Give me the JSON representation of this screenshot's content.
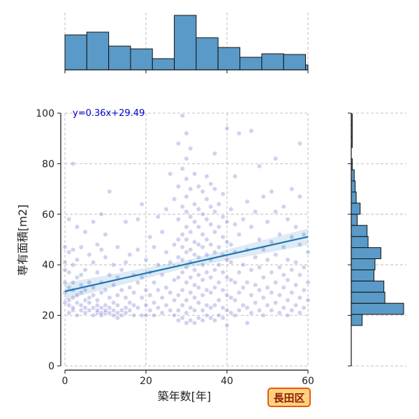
{
  "chart_data": {
    "type": "scatter",
    "xlabel": "築年数[年]",
    "ylabel": "専有面積[m2]",
    "xlim": [
      0,
      60
    ],
    "ylim": [
      0,
      100
    ],
    "xticks": [
      0,
      20,
      40,
      60
    ],
    "yticks": [
      0,
      20,
      40,
      60,
      80,
      100
    ],
    "grid": true,
    "regression": {
      "label": "y=0.36x+29.49",
      "slope": 0.36,
      "intercept": 29.49
    },
    "badge": "長田区",
    "x_histogram": {
      "bin_edges": [
        0,
        5.4,
        10.8,
        16.2,
        21.6,
        27,
        32.4,
        37.8,
        43.2,
        48.6,
        54,
        59.4,
        60
      ],
      "counts": [
        50,
        54,
        34,
        30,
        16,
        78,
        46,
        32,
        18,
        23,
        22,
        7
      ]
    },
    "y_histogram": {
      "bin_edges": [
        16,
        20.4,
        24.8,
        29.2,
        33.6,
        38,
        42.4,
        46.8,
        51.2,
        55.6,
        60,
        64.4,
        68.8,
        73.2,
        77.6,
        82,
        86.4,
        90.8,
        95.2,
        99.6
      ],
      "counts": [
        11,
        53,
        34,
        33,
        23,
        24,
        30,
        17,
        16,
        6,
        9,
        5,
        4,
        3,
        1,
        0,
        1,
        1,
        1
      ]
    },
    "points": [
      [
        0,
        25
      ],
      [
        0,
        29
      ],
      [
        0,
        33
      ],
      [
        0,
        38
      ],
      [
        0,
        41
      ],
      [
        0,
        47
      ],
      [
        1,
        21
      ],
      [
        1,
        24
      ],
      [
        1,
        26
      ],
      [
        1,
        31
      ],
      [
        1,
        37
      ],
      [
        1,
        45
      ],
      [
        1,
        58
      ],
      [
        2,
        22
      ],
      [
        2,
        23
      ],
      [
        2,
        27
      ],
      [
        2,
        30
      ],
      [
        2,
        33
      ],
      [
        2,
        40
      ],
      [
        2,
        46
      ],
      [
        2,
        80
      ],
      [
        3,
        20
      ],
      [
        3,
        25
      ],
      [
        3,
        28
      ],
      [
        3,
        35
      ],
      [
        3,
        42
      ],
      [
        3,
        55
      ],
      [
        4,
        22
      ],
      [
        4,
        24
      ],
      [
        4,
        29
      ],
      [
        4,
        32
      ],
      [
        4,
        36
      ],
      [
        4,
        47
      ],
      [
        5,
        21
      ],
      [
        5,
        23
      ],
      [
        5,
        26
      ],
      [
        5,
        30
      ],
      [
        5,
        38
      ],
      [
        5,
        53
      ],
      [
        6,
        22
      ],
      [
        6,
        25
      ],
      [
        6,
        27
      ],
      [
        6,
        33
      ],
      [
        6,
        44
      ],
      [
        7,
        20
      ],
      [
        7,
        23
      ],
      [
        7,
        28
      ],
      [
        7,
        31
      ],
      [
        7,
        41
      ],
      [
        7,
        57
      ],
      [
        8,
        21
      ],
      [
        8,
        22
      ],
      [
        8,
        24
      ],
      [
        8,
        26
      ],
      [
        8,
        37
      ],
      [
        8,
        48
      ],
      [
        9,
        20
      ],
      [
        9,
        21
      ],
      [
        9,
        23
      ],
      [
        9,
        29
      ],
      [
        9,
        33
      ],
      [
        9,
        46
      ],
      [
        9,
        60
      ],
      [
        10,
        21
      ],
      [
        10,
        22
      ],
      [
        10,
        24
      ],
      [
        10,
        30
      ],
      [
        10,
        43
      ],
      [
        10,
        52
      ],
      [
        11,
        21
      ],
      [
        11,
        23
      ],
      [
        11,
        27
      ],
      [
        11,
        36
      ],
      [
        11,
        69
      ],
      [
        12,
        20
      ],
      [
        12,
        22
      ],
      [
        12,
        25
      ],
      [
        12,
        32
      ],
      [
        12,
        40
      ],
      [
        13,
        19
      ],
      [
        13,
        21
      ],
      [
        13,
        24
      ],
      [
        13,
        28
      ],
      [
        13,
        35
      ],
      [
        13,
        47
      ],
      [
        14,
        20
      ],
      [
        14,
        22
      ],
      [
        14,
        30
      ],
      [
        14,
        38
      ],
      [
        15,
        21
      ],
      [
        15,
        23
      ],
      [
        15,
        27
      ],
      [
        15,
        41
      ],
      [
        15,
        57
      ],
      [
        16,
        22
      ],
      [
        16,
        25
      ],
      [
        16,
        31
      ],
      [
        16,
        44
      ],
      [
        17,
        20
      ],
      [
        17,
        24
      ],
      [
        17,
        29
      ],
      [
        17,
        36
      ],
      [
        18,
        23
      ],
      [
        18,
        33
      ],
      [
        18,
        46
      ],
      [
        18,
        58
      ],
      [
        19,
        20
      ],
      [
        19,
        27
      ],
      [
        19,
        35
      ],
      [
        19,
        64
      ],
      [
        20,
        20
      ],
      [
        20,
        24
      ],
      [
        20,
        30
      ],
      [
        20,
        42
      ],
      [
        21,
        22
      ],
      [
        21,
        28
      ],
      [
        21,
        37
      ],
      [
        21,
        51
      ],
      [
        22,
        20
      ],
      [
        22,
        25
      ],
      [
        22,
        33
      ],
      [
        22,
        47
      ],
      [
        23,
        23
      ],
      [
        23,
        30
      ],
      [
        23,
        40
      ],
      [
        23,
        59
      ],
      [
        24,
        21
      ],
      [
        24,
        27
      ],
      [
        24,
        36
      ],
      [
        24,
        53
      ],
      [
        25,
        24
      ],
      [
        25,
        31
      ],
      [
        25,
        45
      ],
      [
        25,
        62
      ],
      [
        26,
        22
      ],
      [
        26,
        29
      ],
      [
        26,
        41
      ],
      [
        26,
        76
      ],
      [
        27,
        20
      ],
      [
        27,
        26
      ],
      [
        27,
        34
      ],
      [
        27,
        48
      ],
      [
        27,
        66
      ],
      [
        28,
        18
      ],
      [
        28,
        22
      ],
      [
        28,
        28
      ],
      [
        28,
        35
      ],
      [
        28,
        43
      ],
      [
        28,
        50
      ],
      [
        28,
        58
      ],
      [
        28,
        71
      ],
      [
        28,
        88
      ],
      [
        29,
        19
      ],
      [
        29,
        24
      ],
      [
        29,
        30
      ],
      [
        29,
        37
      ],
      [
        29,
        42
      ],
      [
        29,
        47
      ],
      [
        29,
        52
      ],
      [
        29,
        63
      ],
      [
        29,
        78
      ],
      [
        29,
        99
      ],
      [
        30,
        17
      ],
      [
        30,
        21
      ],
      [
        30,
        26
      ],
      [
        30,
        33
      ],
      [
        30,
        39
      ],
      [
        30,
        45
      ],
      [
        30,
        50
      ],
      [
        30,
        55
      ],
      [
        30,
        61
      ],
      [
        30,
        67
      ],
      [
        30,
        74
      ],
      [
        30,
        82
      ],
      [
        30,
        92
      ],
      [
        31,
        18
      ],
      [
        31,
        23
      ],
      [
        31,
        29
      ],
      [
        31,
        35
      ],
      [
        31,
        41
      ],
      [
        31,
        46
      ],
      [
        31,
        53
      ],
      [
        31,
        59
      ],
      [
        31,
        70
      ],
      [
        31,
        86
      ],
      [
        32,
        17
      ],
      [
        32,
        22
      ],
      [
        32,
        27
      ],
      [
        32,
        32
      ],
      [
        32,
        38
      ],
      [
        32,
        44
      ],
      [
        32,
        49
      ],
      [
        32,
        57
      ],
      [
        32,
        64
      ],
      [
        32,
        76
      ],
      [
        33,
        19
      ],
      [
        33,
        25
      ],
      [
        33,
        31
      ],
      [
        33,
        36
      ],
      [
        33,
        43
      ],
      [
        33,
        48
      ],
      [
        33,
        55
      ],
      [
        33,
        62
      ],
      [
        33,
        71
      ],
      [
        34,
        18
      ],
      [
        34,
        22
      ],
      [
        34,
        28
      ],
      [
        34,
        34
      ],
      [
        34,
        40
      ],
      [
        34,
        47
      ],
      [
        34,
        52
      ],
      [
        34,
        60
      ],
      [
        34,
        69
      ],
      [
        35,
        20
      ],
      [
        35,
        24
      ],
      [
        35,
        30
      ],
      [
        35,
        37
      ],
      [
        35,
        44
      ],
      [
        35,
        50
      ],
      [
        35,
        58
      ],
      [
        35,
        66
      ],
      [
        35,
        75
      ],
      [
        36,
        19
      ],
      [
        36,
        23
      ],
      [
        36,
        29
      ],
      [
        36,
        35
      ],
      [
        36,
        42
      ],
      [
        36,
        48
      ],
      [
        36,
        56
      ],
      [
        36,
        63
      ],
      [
        36,
        72
      ],
      [
        37,
        18
      ],
      [
        37,
        24
      ],
      [
        37,
        31
      ],
      [
        37,
        38
      ],
      [
        37,
        45
      ],
      [
        37,
        53
      ],
      [
        37,
        61
      ],
      [
        37,
        70
      ],
      [
        37,
        84
      ],
      [
        38,
        20
      ],
      [
        38,
        26
      ],
      [
        38,
        33
      ],
      [
        38,
        40
      ],
      [
        38,
        47
      ],
      [
        38,
        55
      ],
      [
        38,
        64
      ],
      [
        39,
        19
      ],
      [
        39,
        23
      ],
      [
        39,
        30
      ],
      [
        39,
        37
      ],
      [
        39,
        44
      ],
      [
        39,
        51
      ],
      [
        39,
        59
      ],
      [
        39,
        68
      ],
      [
        40,
        16
      ],
      [
        40,
        22
      ],
      [
        40,
        28
      ],
      [
        40,
        35
      ],
      [
        40,
        42
      ],
      [
        40,
        49
      ],
      [
        40,
        57
      ],
      [
        40,
        94
      ],
      [
        41,
        21
      ],
      [
        41,
        27
      ],
      [
        41,
        34
      ],
      [
        41,
        41
      ],
      [
        41,
        48
      ],
      [
        41,
        62
      ],
      [
        42,
        20
      ],
      [
        42,
        26
      ],
      [
        42,
        33
      ],
      [
        42,
        45
      ],
      [
        42,
        56
      ],
      [
        42,
        75
      ],
      [
        43,
        22
      ],
      [
        43,
        29
      ],
      [
        43,
        37
      ],
      [
        43,
        52
      ],
      [
        43,
        92
      ],
      [
        44,
        24
      ],
      [
        44,
        31
      ],
      [
        44,
        40
      ],
      [
        44,
        58
      ],
      [
        45,
        17
      ],
      [
        45,
        23
      ],
      [
        45,
        33
      ],
      [
        45,
        46
      ],
      [
        45,
        65
      ],
      [
        46,
        21
      ],
      [
        46,
        28
      ],
      [
        46,
        38
      ],
      [
        46,
        55
      ],
      [
        46,
        93
      ],
      [
        47,
        25
      ],
      [
        47,
        32
      ],
      [
        47,
        43
      ],
      [
        47,
        61
      ],
      [
        48,
        22
      ],
      [
        48,
        30
      ],
      [
        48,
        39
      ],
      [
        48,
        50
      ],
      [
        48,
        79
      ],
      [
        49,
        20
      ],
      [
        49,
        27
      ],
      [
        49,
        35
      ],
      [
        49,
        46
      ],
      [
        49,
        67
      ],
      [
        50,
        24
      ],
      [
        50,
        31
      ],
      [
        50,
        42
      ],
      [
        50,
        57
      ],
      [
        51,
        22
      ],
      [
        51,
        29
      ],
      [
        51,
        37
      ],
      [
        51,
        49
      ],
      [
        51,
        69
      ],
      [
        52,
        25
      ],
      [
        52,
        33
      ],
      [
        52,
        44
      ],
      [
        52,
        61
      ],
      [
        52,
        82
      ],
      [
        53,
        21
      ],
      [
        53,
        28
      ],
      [
        53,
        39
      ],
      [
        53,
        52
      ],
      [
        54,
        23
      ],
      [
        54,
        31
      ],
      [
        54,
        36
      ],
      [
        54,
        47
      ],
      [
        54,
        63
      ],
      [
        55,
        20
      ],
      [
        55,
        26
      ],
      [
        55,
        34
      ],
      [
        55,
        42
      ],
      [
        55,
        58
      ],
      [
        56,
        22
      ],
      [
        56,
        29
      ],
      [
        56,
        38
      ],
      [
        56,
        51
      ],
      [
        56,
        70
      ],
      [
        57,
        24
      ],
      [
        57,
        32
      ],
      [
        57,
        41
      ],
      [
        57,
        55
      ],
      [
        58,
        21
      ],
      [
        58,
        27
      ],
      [
        58,
        36
      ],
      [
        58,
        48
      ],
      [
        58,
        67
      ],
      [
        58,
        88
      ],
      [
        59,
        23
      ],
      [
        59,
        30
      ],
      [
        59,
        39
      ],
      [
        59,
        52
      ],
      [
        60,
        26
      ],
      [
        60,
        33
      ],
      [
        60,
        45
      ]
    ]
  }
}
